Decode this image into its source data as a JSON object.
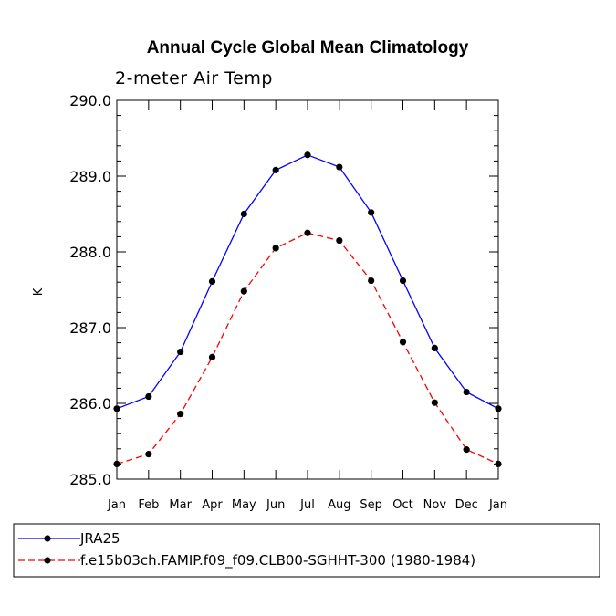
{
  "chart_data": {
    "type": "line",
    "title": "Annual Cycle Global Mean Climatology",
    "subtitle": "2-meter Air Temp",
    "xlabel": "",
    "ylabel": "K",
    "categories": [
      "Jan",
      "Feb",
      "Mar",
      "Apr",
      "May",
      "Jun",
      "Jul",
      "Aug",
      "Sep",
      "Oct",
      "Nov",
      "Dec",
      "Jan"
    ],
    "ylim": [
      285.0,
      290.0
    ],
    "yticks": [
      "285.0",
      "286.0",
      "287.0",
      "288.0",
      "289.0",
      "290.0"
    ],
    "grid": false,
    "legend_position": "bottom",
    "series": [
      {
        "name": "JRA25",
        "color": "#0000ff",
        "dash": "solid",
        "values": [
          285.93,
          286.09,
          286.68,
          287.61,
          288.5,
          289.08,
          289.28,
          289.12,
          288.52,
          287.62,
          286.73,
          286.15,
          285.93
        ]
      },
      {
        "name": "f.e15b03ch.FAMIP.f09_f09.CLB00-SGHHT-300 (1980-1984)",
        "color": "#ff0000",
        "dash": "dashed",
        "values": [
          285.2,
          285.33,
          285.86,
          286.61,
          287.48,
          288.05,
          288.25,
          288.15,
          287.62,
          286.81,
          286.01,
          285.39,
          285.2
        ]
      }
    ]
  }
}
